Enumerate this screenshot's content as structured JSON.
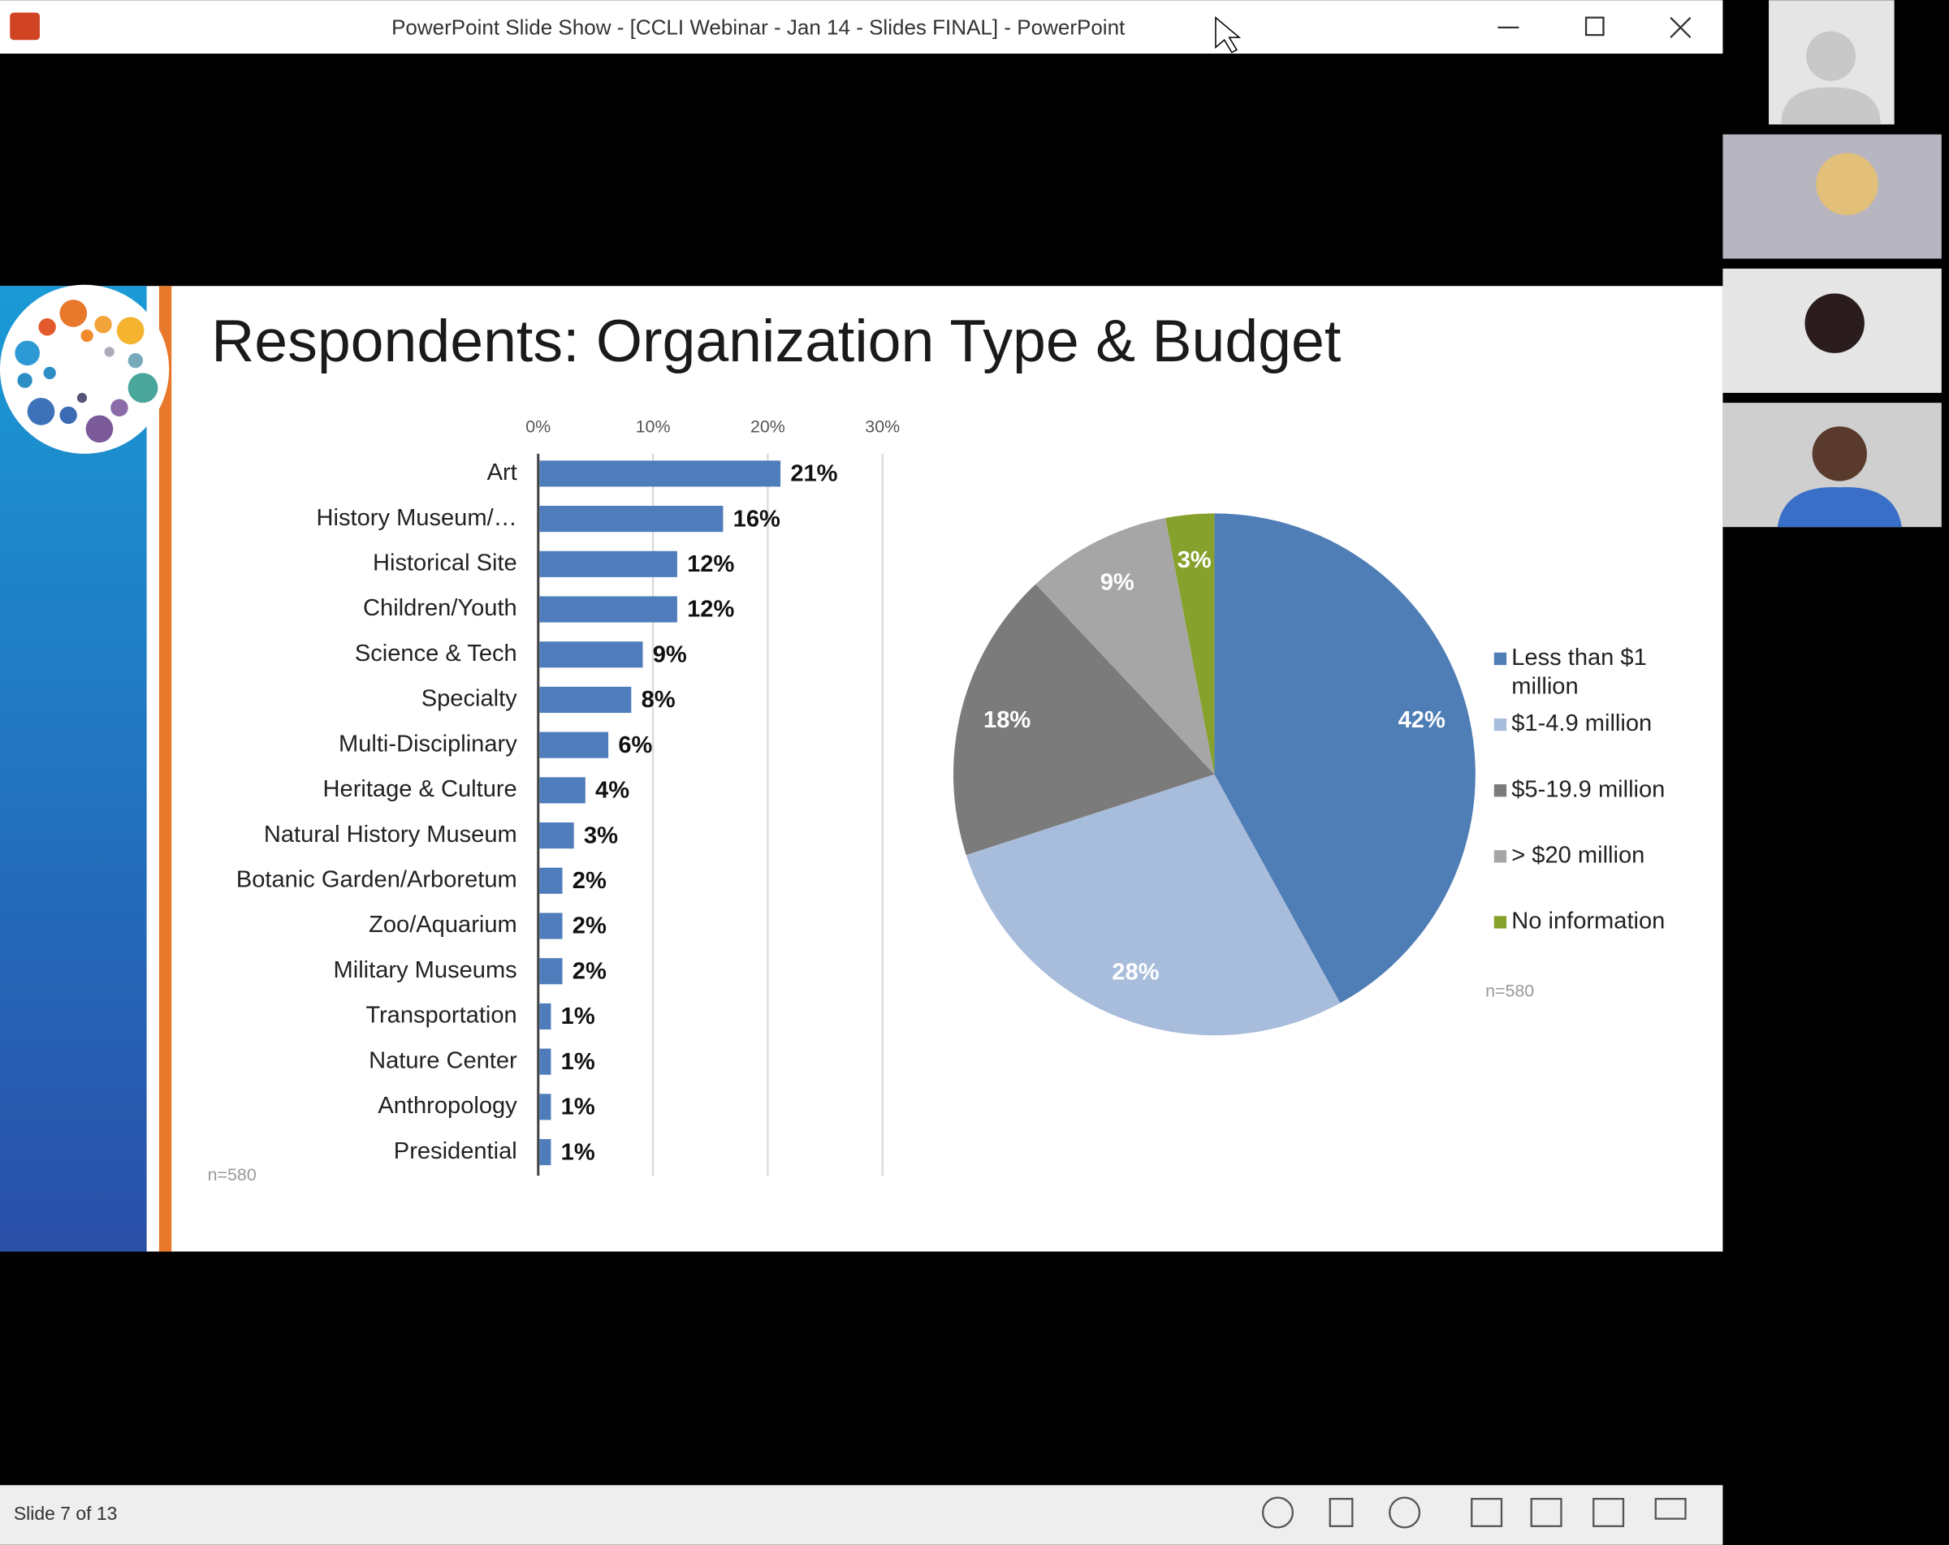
{
  "window": {
    "title": "PowerPoint Slide Show - [CCLI Webinar - Jan 14 - Slides FINAL] - PowerPoint"
  },
  "slide": {
    "title": "Respondents: Organization Type & Budget"
  },
  "status": {
    "slide": "Slide 7 of 13"
  },
  "chart_data": [
    {
      "type": "bar",
      "orientation": "horizontal",
      "color": "#4f7dbb",
      "grid": true,
      "categories": [
        "Art",
        "History Museum/…",
        "Historical Site",
        "Children/Youth",
        "Science & Tech",
        "Specialty",
        "Multi-Disciplinary",
        "Heritage & Culture",
        "Natural History Museum",
        "Botanic Garden/Arboretum",
        "Zoo/Aquarium",
        "Military Museums",
        "Transportation",
        "Nature Center",
        "Anthropology",
        "Presidential"
      ],
      "values": [
        21,
        16,
        12,
        12,
        9,
        8,
        6,
        4,
        3,
        2,
        2,
        2,
        1,
        1,
        1,
        1
      ],
      "value_labels": [
        "21%",
        "16%",
        "12%",
        "12%",
        "9%",
        "8%",
        "6%",
        "4%",
        "3%",
        "2%",
        "2%",
        "2%",
        "1%",
        "1%",
        "1%",
        "1%"
      ],
      "xlim": [
        0,
        30
      ],
      "xticks": [
        {
          "value": 0,
          "label": "0%"
        },
        {
          "value": 10,
          "label": "10%"
        },
        {
          "value": 20,
          "label": "20%"
        },
        {
          "value": 30,
          "label": "30%"
        }
      ],
      "annotation": "n=580"
    },
    {
      "type": "pie",
      "categories": [
        "Less than $1 million",
        "$1-4.9 million",
        "$5-19.9 million",
        "> $20 million",
        "No information"
      ],
      "values": [
        42,
        28,
        18,
        9,
        3
      ],
      "value_labels": [
        "42%",
        "28%",
        "18%",
        "9%",
        "3%"
      ],
      "colors": [
        "#4f7db5",
        "#a8bcdb",
        "#7b7b7b",
        "#a6a6a6",
        "#86a12c"
      ],
      "legend": "right",
      "annotation": "n=580"
    }
  ]
}
